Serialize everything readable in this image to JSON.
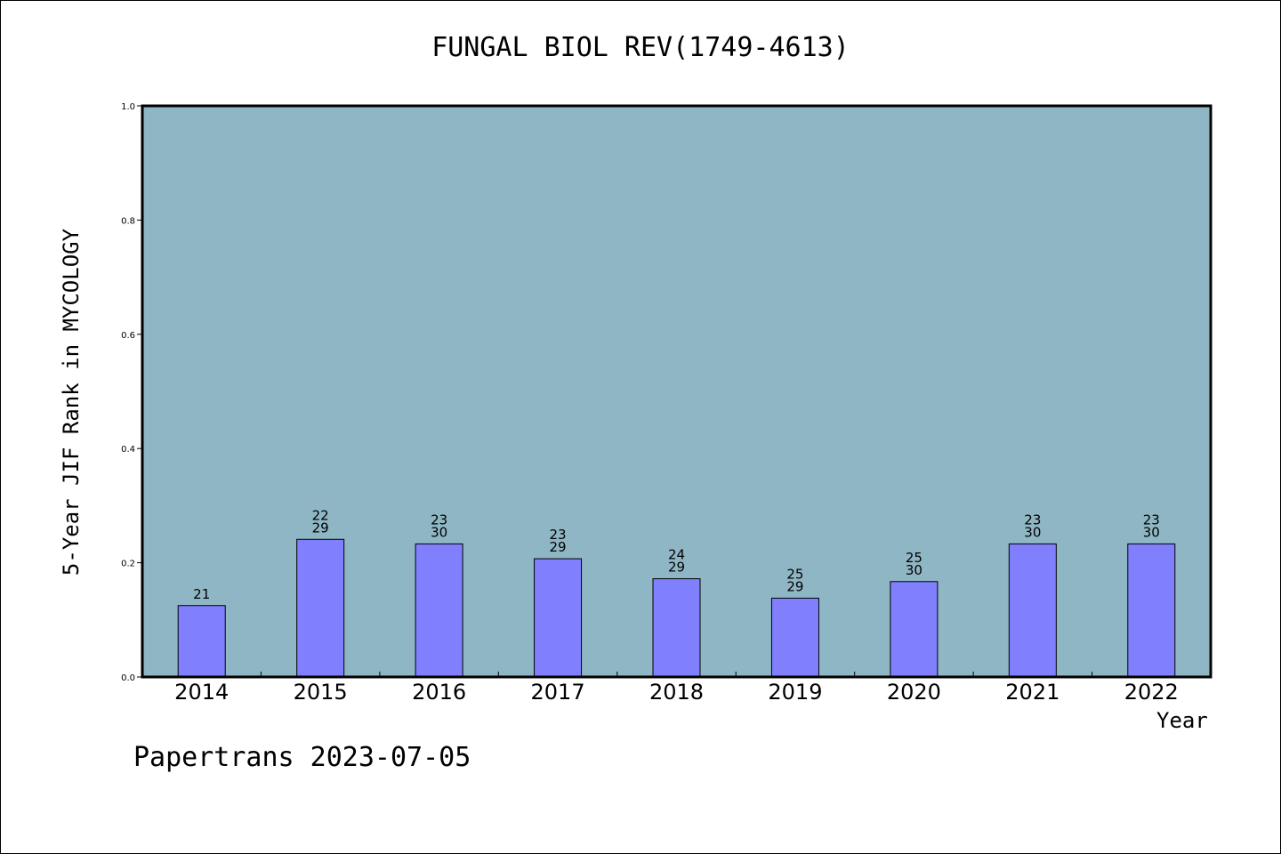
{
  "chart_data": {
    "type": "bar",
    "title": "FUNGAL BIOL REV(1749-4613)",
    "xlabel": "Year",
    "ylabel": "5-Year JIF Rank in MYCOLOGY",
    "ylim": [
      0.0,
      1.0
    ],
    "yticks": [
      "0.0",
      "0.2",
      "0.4",
      "0.6",
      "0.8",
      "1.0"
    ],
    "categories": [
      "2014",
      "2015",
      "2016",
      "2017",
      "2018",
      "2019",
      "2020",
      "2021",
      "2022"
    ],
    "values": [
      0.125,
      0.241,
      0.233,
      0.207,
      0.172,
      0.138,
      0.167,
      0.233,
      0.233
    ],
    "labels": [
      [
        "21"
      ],
      [
        "22",
        "29"
      ],
      [
        "23",
        "30"
      ],
      [
        "23",
        "29"
      ],
      [
        "24",
        "29"
      ],
      [
        "25",
        "29"
      ],
      [
        "25",
        "30"
      ],
      [
        "23",
        "30"
      ],
      [
        "23",
        "30"
      ]
    ],
    "colors": {
      "plot_background": "#8fb6c4",
      "bar_fill": "#8080ff",
      "bar_stroke": "#000000"
    },
    "grid": false,
    "legend": "none"
  },
  "footer": {
    "text": "Papertrans 2023-07-05"
  }
}
